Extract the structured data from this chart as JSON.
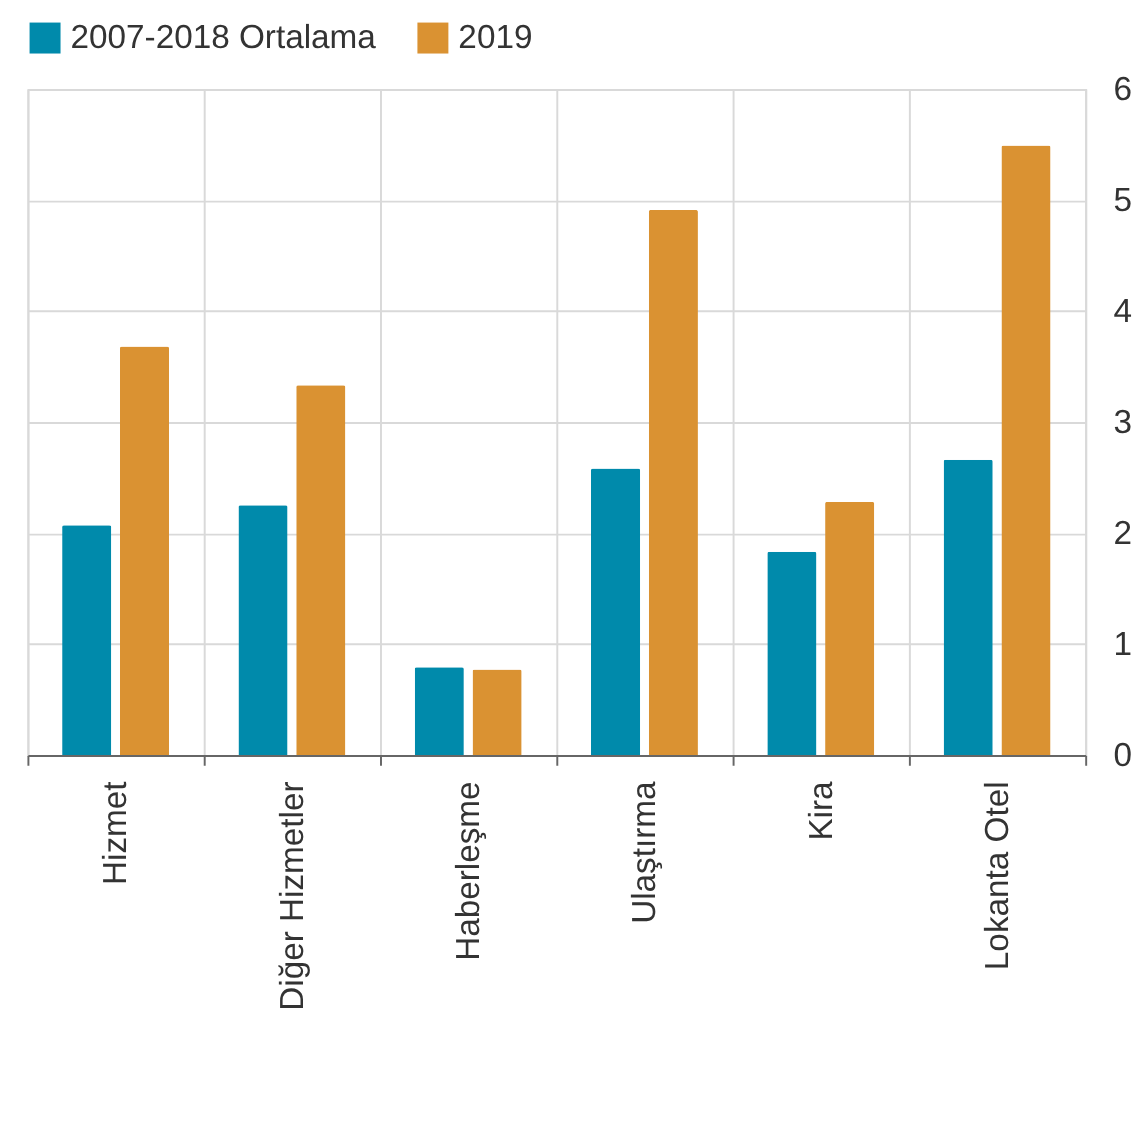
{
  "chart_data": {
    "type": "bar",
    "categories": [
      "Hizmet",
      "Diğer Hizmetler",
      "Haberleşme",
      "Ulaştırma",
      "Kira",
      "Lokanta Otel"
    ],
    "series": [
      {
        "name": "2007-2018 Ortalama",
        "color": "#008aab",
        "values": [
          2.07,
          2.25,
          0.79,
          2.58,
          1.83,
          2.66
        ]
      },
      {
        "name": "2019",
        "color": "#da9232",
        "values": [
          3.68,
          3.33,
          0.77,
          4.91,
          2.28,
          5.49
        ]
      }
    ],
    "ylim": [
      0,
      6
    ],
    "yticks": [
      0,
      1,
      2,
      3,
      4,
      5,
      6
    ],
    "grid": true,
    "legend": "top"
  }
}
